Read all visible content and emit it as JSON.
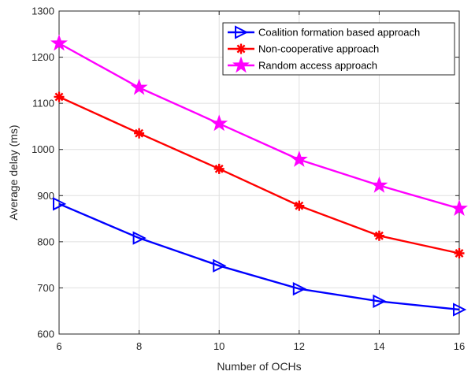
{
  "chart_data": {
    "type": "line",
    "title": "",
    "xlabel": "Number of OCHs",
    "ylabel": "Average delay (ms)",
    "xlim": [
      6,
      16
    ],
    "ylim": [
      600,
      1300
    ],
    "xticks": [
      "6",
      "8",
      "10",
      "12",
      "14",
      "16"
    ],
    "yticks": [
      "600",
      "700",
      "800",
      "900",
      "1000",
      "1100",
      "1200",
      "1300"
    ],
    "grid": true,
    "legend_position": "top-right",
    "x": [
      6,
      8,
      10,
      12,
      14,
      16
    ],
    "series": [
      {
        "name": "Coalition formation based approach",
        "color": "#0000ff",
        "marker": "triangle-right",
        "values": [
          882,
          808,
          748,
          698,
          671,
          653
        ]
      },
      {
        "name": "Non-cooperative approach",
        "color": "#ff0000",
        "marker": "asterisk",
        "values": [
          1114,
          1035,
          958,
          878,
          813,
          775
        ]
      },
      {
        "name": "Random access approach",
        "color": "#ff00ff",
        "marker": "star",
        "values": [
          1230,
          1134,
          1056,
          978,
          922,
          872
        ]
      }
    ]
  }
}
